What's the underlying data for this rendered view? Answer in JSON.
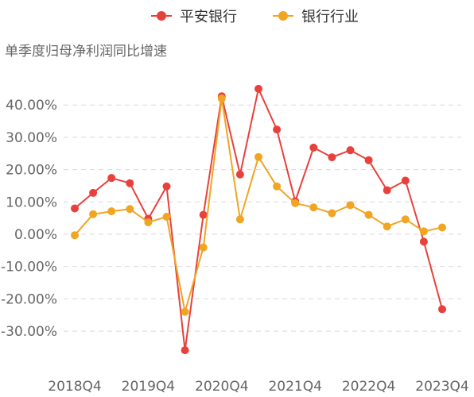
{
  "chart_data": {
    "type": "line",
    "title": "",
    "ylabel": "单季度归母净利润同比增速",
    "xlabel": "",
    "ylim": [
      -40,
      45
    ],
    "yticks": [
      -30,
      -20,
      -10,
      0,
      10,
      20,
      30,
      40
    ],
    "ytick_labels": [
      "-30.00%",
      "-20.00%",
      "-10.00%",
      "0.00%",
      "10.00%",
      "20.00%",
      "30.00%",
      "40.00%"
    ],
    "x_tick_labels": [
      "2018Q4",
      "2019Q4",
      "2020Q4",
      "2021Q4",
      "2022Q4",
      "2023Q4"
    ],
    "x": [
      "2018Q4",
      "2019Q1",
      "2019Q2",
      "2019Q3",
      "2019Q4",
      "2020Q1",
      "2020Q2",
      "2020Q3",
      "2020Q4",
      "2021Q1",
      "2021Q2",
      "2021Q3",
      "2021Q4",
      "2022Q1",
      "2022Q2",
      "2022Q3",
      "2022Q4",
      "2023Q1",
      "2023Q2",
      "2023Q3",
      "2023Q4"
    ],
    "grid": true,
    "legend_position": "top-center",
    "series": [
      {
        "name": "平安银行",
        "color": "#e8413c",
        "values": [
          8.0,
          12.8,
          17.4,
          15.8,
          4.8,
          14.8,
          -35.9,
          6.0,
          42.7,
          18.5,
          45.0,
          32.4,
          10.2,
          26.8,
          23.8,
          26.0,
          22.9,
          13.6,
          16.6,
          -2.3,
          -23.2
        ]
      },
      {
        "name": "银行行业",
        "color": "#f0a523",
        "values": [
          -0.3,
          6.2,
          7.1,
          7.8,
          3.7,
          5.4,
          -24.0,
          -4.1,
          42.0,
          4.6,
          23.9,
          14.8,
          9.6,
          8.3,
          6.5,
          9.0,
          6.0,
          2.4,
          4.6,
          0.9,
          2.1
        ]
      }
    ]
  }
}
